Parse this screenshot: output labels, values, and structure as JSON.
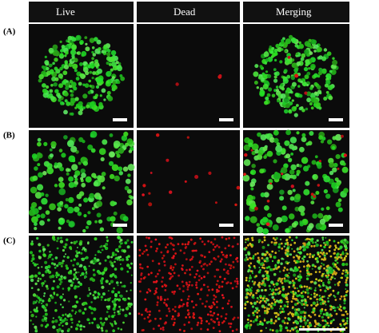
{
  "columns": [
    "Live",
    "Dead",
    "Merging"
  ],
  "rows": [
    "(A)",
    "(B)",
    "(C)"
  ]
}
